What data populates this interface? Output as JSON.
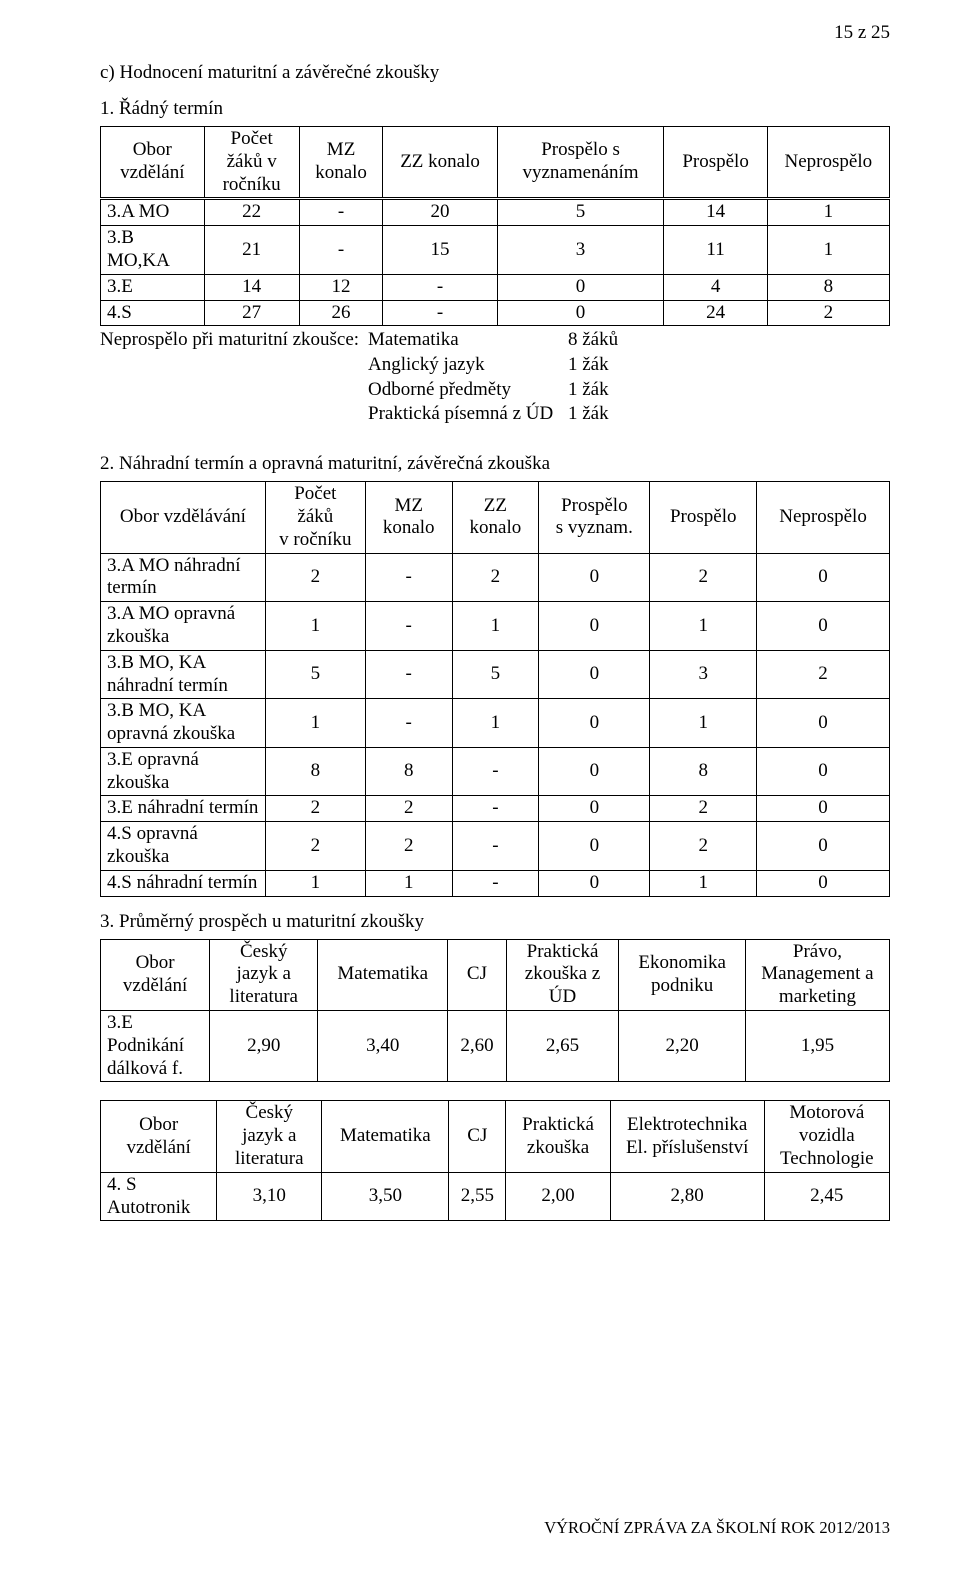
{
  "header": {
    "page_number": "15 z 25"
  },
  "section_c": {
    "title": "c) Hodnocení maturitní a závěrečné zkoušky"
  },
  "termin1": {
    "title": "1. Řádný termín",
    "columns": [
      "Obor\nvzdělání",
      "Počet\nžáků v\nročníku",
      "MZ\nkonalo",
      "ZZ konalo",
      "Prospělo s\nvyznamenáním",
      "Prospělo",
      "Neprospělo"
    ],
    "rows": [
      [
        "3.A MO",
        "22",
        "-",
        "20",
        "5",
        "14",
        "1"
      ],
      [
        "3.B\nMO,KA",
        "21",
        "-",
        "15",
        "3",
        "11",
        "1"
      ],
      [
        "3.E",
        "14",
        "12",
        "-",
        "0",
        "4",
        "8"
      ],
      [
        "4.S",
        "27",
        "26",
        "-",
        "0",
        "24",
        "2"
      ]
    ],
    "fail_label": "Neprospělo při maturitní zkoušce:",
    "fail_items": [
      {
        "subject": "Matematika",
        "count": "8 žáků"
      },
      {
        "subject": "Anglický jazyk",
        "count": "1 žák"
      },
      {
        "subject": "Odborné předměty",
        "count": "1 žák"
      },
      {
        "subject": "Praktická písemná z ÚD",
        "count": "1 žák"
      }
    ]
  },
  "termin2": {
    "title": "2. Náhradní termín a opravná maturitní, závěrečná zkouška",
    "columns": [
      "Obor vzdělávání",
      "Počet\nžáků\nv ročníku",
      "MZ\nkonalo",
      "ZZ\nkonalo",
      "Prospělo\ns vyznam.",
      "Prospělo",
      "Neprospělo"
    ],
    "rows": [
      [
        "3.A MO náhradní\ntermín",
        "2",
        "-",
        "2",
        "0",
        "2",
        "0"
      ],
      [
        "3.A MO opravná\nzkouška",
        "1",
        "-",
        "1",
        "0",
        "1",
        "0"
      ],
      [
        "3.B MO, KA\nnáhradní termín",
        "5",
        "-",
        "5",
        "0",
        "3",
        "2"
      ],
      [
        "3.B MO, KA\nopravná  zkouška",
        "1",
        "-",
        "1",
        "0",
        "1",
        "0"
      ],
      [
        "3.E opravná zkouška",
        "8",
        "8",
        "-",
        "0",
        "8",
        "0"
      ],
      [
        "3.E náhradní termín",
        "2",
        "2",
        "-",
        "0",
        "2",
        "0"
      ],
      [
        "4.S opravná zkouška",
        "2",
        "2",
        "-",
        "0",
        "2",
        "0"
      ],
      [
        "4.S náhradní termín",
        "1",
        "1",
        "-",
        "0",
        "1",
        "0"
      ]
    ]
  },
  "avg3a": {
    "title": "3.  Průměrný prospěch u maturitní zkoušky",
    "columns": [
      "Obor\nvzdělání",
      "Český\njazyk a\nliteratura",
      "Matematika",
      "CJ",
      "Praktická\nzkouška z\nÚD",
      "Ekonomika\npodniku",
      "Právo,\nManagement a\nmarketing"
    ],
    "row_label": "3.E\nPodnikání\ndálková f.",
    "row": [
      "2,90",
      "3,40",
      "2,60",
      "2,65",
      "2,20",
      "1,95"
    ]
  },
  "avg3b": {
    "columns": [
      "Obor\nvzdělání",
      "Český\njazyk a\nliteratura",
      "Matematika",
      "CJ",
      "Praktická\nzkouška",
      "Elektrotechnika\nEl. příslušenství",
      "Motorová\nvozidla\nTechnologie"
    ],
    "row_label": "4. S\nAutotronik",
    "row": [
      "3,10",
      "3,50",
      "2,55",
      "2,00",
      "2,80",
      "2,45"
    ]
  },
  "footer": {
    "text": "VÝROČNÍ ZPRÁVA ZA ŠKOLNÍ ROK 2012/2013"
  }
}
